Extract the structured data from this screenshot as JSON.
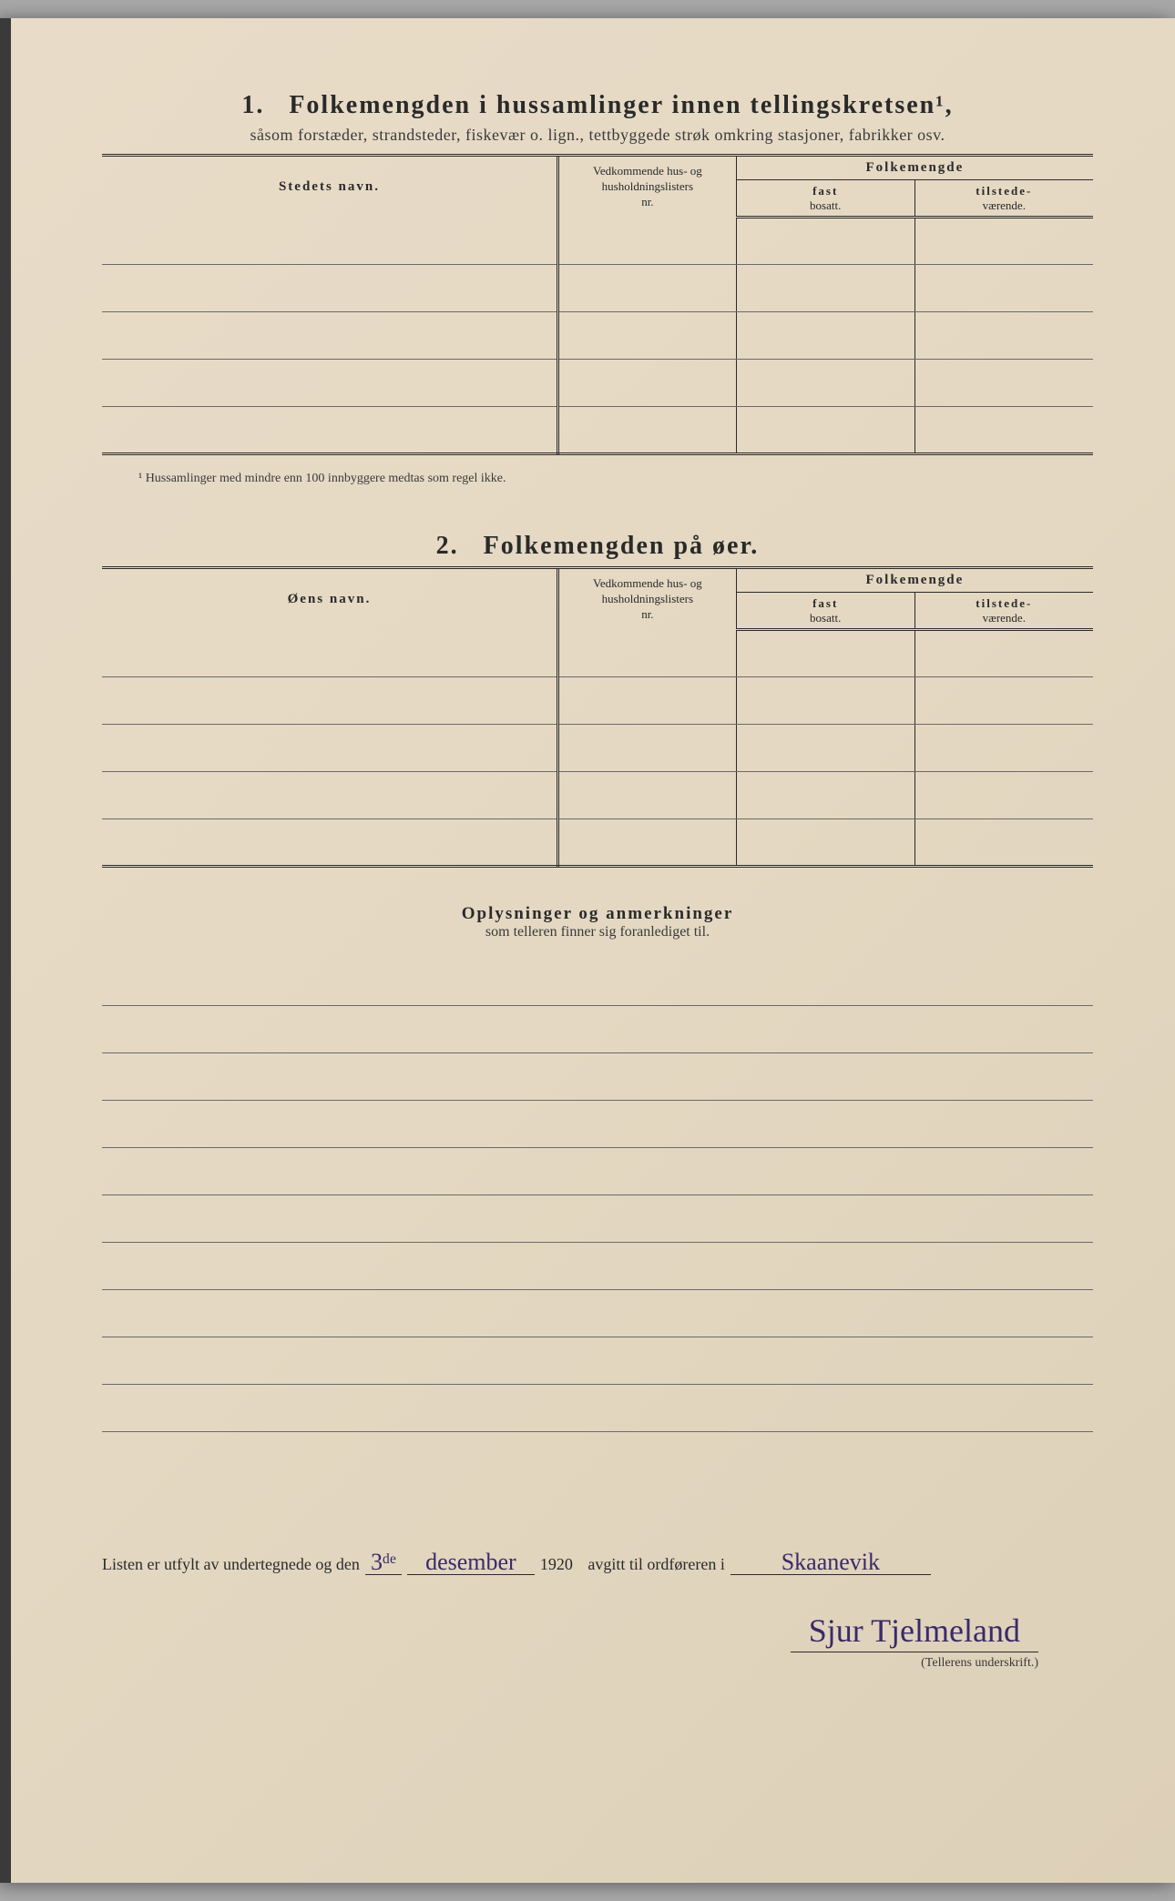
{
  "page": {
    "background_color": "#e4d8c2",
    "text_color": "#2a2a2a",
    "rule_color": "#6a6a6a",
    "handwriting_color": "#3a2a6a"
  },
  "section1": {
    "number": "1.",
    "title": "Folkemengden i hussamlinger innen tellingskretsen¹,",
    "subtitle": "såsom forstæder, strandsteder, fiskevær o. lign., tettbyggede strøk omkring stasjoner, fabrikker osv.",
    "columns": {
      "name": "Stedets navn.",
      "lister_l1": "Vedkommende hus- og",
      "lister_l2": "husholdningslisters",
      "lister_l3": "nr.",
      "folkemengde": "Folkemengde",
      "fast_l1": "fast",
      "fast_l2": "bosatt.",
      "tilstede_l1": "tilstede-",
      "tilstede_l2": "værende."
    },
    "row_count": 5,
    "footnote": "¹ Hussamlinger med mindre enn 100 innbyggere medtas som regel ikke."
  },
  "section2": {
    "number": "2.",
    "title": "Folkemengden på øer.",
    "columns": {
      "name": "Øens navn.",
      "lister_l1": "Vedkommende hus- og",
      "lister_l2": "husholdningslisters",
      "lister_l3": "nr.",
      "folkemengde": "Folkemengde",
      "fast_l1": "fast",
      "fast_l2": "bosatt.",
      "tilstede_l1": "tilstede-",
      "tilstede_l2": "værende."
    },
    "row_count": 5
  },
  "remarks": {
    "title": "Oplysninger og anmerkninger",
    "subtitle": "som telleren finner sig foranlediget til.",
    "line_count": 10
  },
  "signature": {
    "prefix": "Listen er utfylt av undertegnede og den",
    "date_day": "3ᵈᵉ",
    "date_month": "desember",
    "year": "1920",
    "mid": "avgitt til ordføreren i",
    "place": "Skaanevik",
    "name": "Sjur Tjelmeland",
    "label": "(Tellerens underskrift.)"
  }
}
